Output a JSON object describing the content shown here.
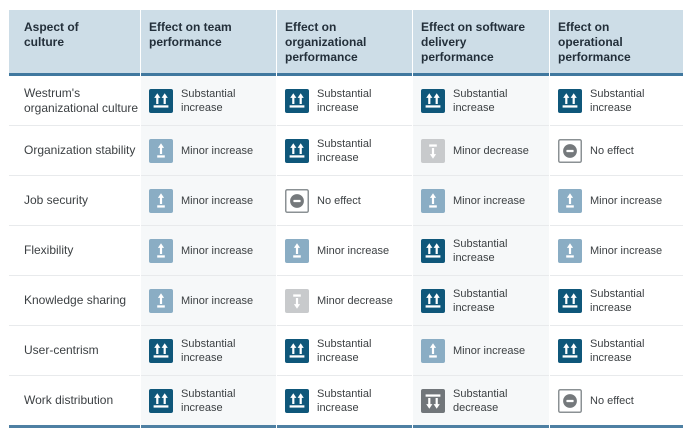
{
  "colors": {
    "header_bg": "#cddde7",
    "header_text": "#232f3a",
    "header_rule": "#40789f",
    "bottom_rule": "#4e80a3",
    "row_separator": "#e8eaec",
    "tint_column_bg": "#f6f8f9",
    "body_text": "#3c4043",
    "icon_glyph": "#ffffff",
    "no_effect_border": "#8b9194"
  },
  "table": {
    "columns": [
      {
        "label": "Aspect of culture",
        "tinted": false
      },
      {
        "label": "Effect on team performance",
        "tinted": true
      },
      {
        "label": "Effect on organizational performance",
        "tinted": false
      },
      {
        "label": "Effect on software delivery performance",
        "tinted": true
      },
      {
        "label": "Effect on operational performance",
        "tinted": false
      }
    ],
    "effect_types": {
      "substantial-increase": {
        "label": "Substantial increase",
        "color": "#0f577a"
      },
      "minor-increase": {
        "label": "Minor increase",
        "color": "#8aadc4"
      },
      "minor-decrease": {
        "label": "Minor decrease",
        "color": "#c8cacc"
      },
      "substantial-decrease": {
        "label": "Substantial decrease",
        "color": "#71767a"
      },
      "no-effect": {
        "label": "No effect",
        "color": "#75797c"
      }
    },
    "rows": [
      {
        "aspect": "Westrum's organizational culture",
        "effects": [
          "substantial-increase",
          "substantial-increase",
          "substantial-increase",
          "substantial-increase"
        ]
      },
      {
        "aspect": "Organization stability",
        "effects": [
          "minor-increase",
          "substantial-increase",
          "minor-decrease",
          "no-effect"
        ]
      },
      {
        "aspect": "Job security",
        "effects": [
          "minor-increase",
          "no-effect",
          "minor-increase",
          "minor-increase"
        ]
      },
      {
        "aspect": "Flexibility",
        "effects": [
          "minor-increase",
          "minor-increase",
          "substantial-increase",
          "minor-increase"
        ]
      },
      {
        "aspect": "Knowledge sharing",
        "effects": [
          "minor-increase",
          "minor-decrease",
          "substantial-increase",
          "substantial-increase"
        ]
      },
      {
        "aspect": "User-centrism",
        "effects": [
          "substantial-increase",
          "substantial-increase",
          "minor-increase",
          "substantial-increase"
        ]
      },
      {
        "aspect": "Work distribution",
        "effects": [
          "substantial-increase",
          "substantial-increase",
          "substantial-decrease",
          "no-effect"
        ]
      }
    ]
  },
  "chart_data": {
    "type": "table",
    "columns": [
      "Aspect of culture",
      "Effect on team performance",
      "Effect on organizational performance",
      "Effect on software delivery performance",
      "Effect on operational performance"
    ],
    "rows": [
      [
        "Westrum's organizational culture",
        "Substantial increase",
        "Substantial increase",
        "Substantial increase",
        "Substantial increase"
      ],
      [
        "Organization stability",
        "Minor increase",
        "Substantial increase",
        "Minor decrease",
        "No effect"
      ],
      [
        "Job security",
        "Minor increase",
        "No effect",
        "Minor increase",
        "Minor increase"
      ],
      [
        "Flexibility",
        "Minor increase",
        "Minor increase",
        "Substantial increase",
        "Minor increase"
      ],
      [
        "Knowledge sharing",
        "Minor increase",
        "Minor decrease",
        "Substantial increase",
        "Substantial increase"
      ],
      [
        "User-centrism",
        "Substantial increase",
        "Substantial increase",
        "Minor increase",
        "Substantial increase"
      ],
      [
        "Work distribution",
        "Substantial increase",
        "Substantial increase",
        "Substantial decrease",
        "No effect"
      ]
    ]
  }
}
